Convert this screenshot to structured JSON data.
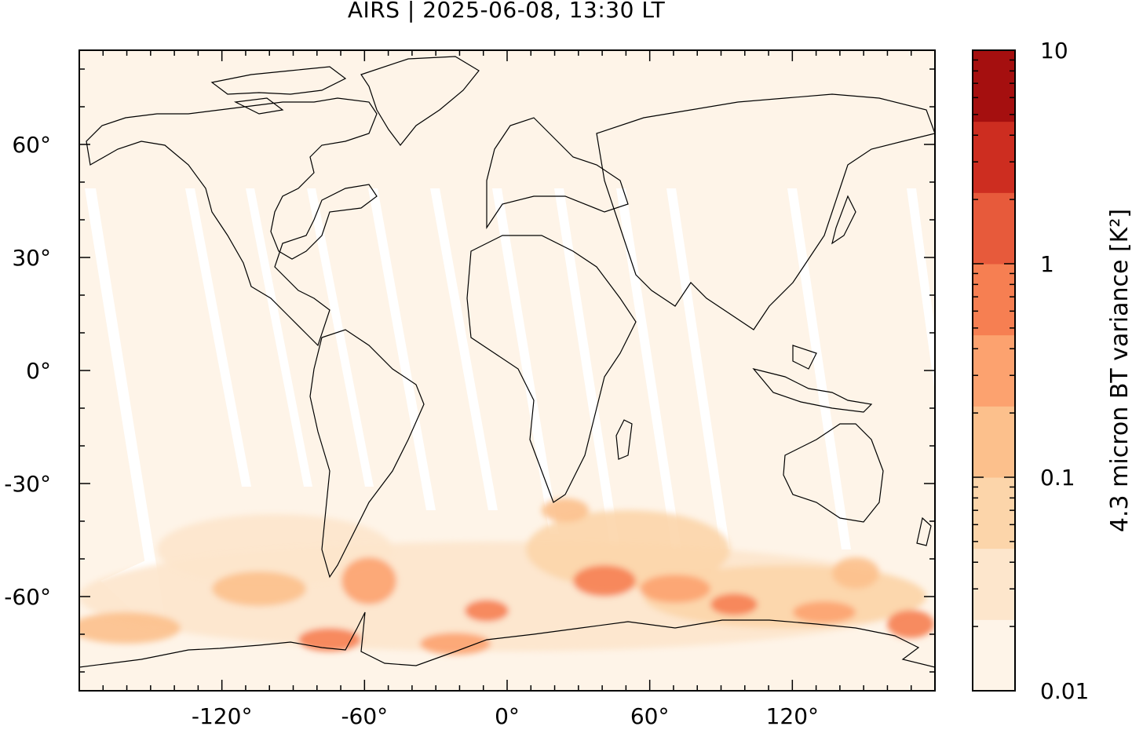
{
  "title": "AIRS | 2025-06-08, 13:30 LT",
  "map": {
    "projection": "plate-carree",
    "lon_range": [
      -180,
      180
    ],
    "lat_range": [
      -85,
      85
    ],
    "x_ticks": [
      {
        "value": -120,
        "label": "-120°"
      },
      {
        "value": -60,
        "label": "-60°"
      },
      {
        "value": 0,
        "label": "0°"
      },
      {
        "value": 60,
        "label": "60°"
      },
      {
        "value": 120,
        "label": "120°"
      }
    ],
    "y_ticks": [
      {
        "value": 60,
        "label": "60°"
      },
      {
        "value": 30,
        "label": "30°"
      },
      {
        "value": 0,
        "label": "0°"
      },
      {
        "value": -30,
        "label": "-30°"
      },
      {
        "value": -60,
        "label": "-60°"
      }
    ],
    "background_color": "#fef4e8",
    "gap_color": "#ffffff",
    "coastline_color": "#000000"
  },
  "colorbar": {
    "label": "4.3 micron BT variance [K²]",
    "scale": "log",
    "range": [
      0.01,
      10
    ],
    "tick_labels": [
      {
        "value": 10,
        "label": "10"
      },
      {
        "value": 1,
        "label": "1"
      },
      {
        "value": 0.1,
        "label": "0.1"
      },
      {
        "value": 0.01,
        "label": "0.01"
      }
    ],
    "colors": [
      "#fef4e8",
      "#fde6cc",
      "#fcd5aa",
      "#fcc08c",
      "#fca26f",
      "#f67f52",
      "#e75a3b",
      "#cd2d20",
      "#a50f0f"
    ]
  }
}
